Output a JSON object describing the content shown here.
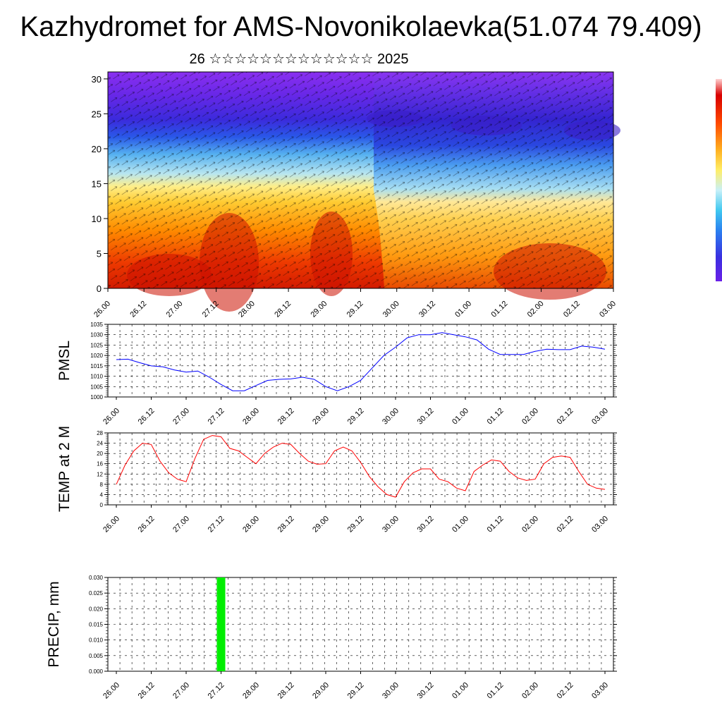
{
  "title": "Kazhydromet for AMS-Novonikolaevka(51.074 79.409)",
  "subtitle": "26 ☆☆☆☆☆☆☆☆☆☆☆☆☆ 2025",
  "colors": {
    "pmsl_line": "#0000ff",
    "temp_line": "#ff0000",
    "precip_bar": "#00ee00",
    "grid": "#000000"
  },
  "chart_data": [
    {
      "id": "cross-section",
      "type": "heatmap",
      "title": "",
      "xlabel": "",
      "ylabel": "",
      "x_ticks": [
        "26.00",
        "26.12",
        "27.00",
        "27.12",
        "28.00",
        "28.12",
        "29.00",
        "29.12",
        "30.00",
        "30.12",
        "01.00",
        "01.12",
        "02.00",
        "02.12",
        "03.00"
      ],
      "y_ticks": [
        0,
        5,
        10,
        15,
        20,
        25,
        30
      ],
      "ylim": [
        0,
        31
      ],
      "colorbar": "violet-blue-cyan-yellow-orange-red",
      "overlay": "wind vectors"
    },
    {
      "id": "pmsl",
      "type": "line",
      "ylabel": "PMSL",
      "x_ticks": [
        "26.00",
        "26.12",
        "27.00",
        "27.12",
        "28.00",
        "28.12",
        "29.00",
        "29.12",
        "30.00",
        "30.12",
        "01.00",
        "01.12",
        "02.00",
        "02.12",
        "03.00"
      ],
      "ylim": [
        1000,
        1035
      ],
      "y_ticks": [
        1000,
        1005,
        1010,
        1015,
        1020,
        1025,
        1030,
        1035
      ],
      "series": [
        {
          "values": [
            1018,
            1018.2,
            1016.5,
            1015,
            1014.5,
            1013,
            1012,
            1012.5,
            1009.5,
            1006,
            1003,
            1003,
            1005.5,
            1008,
            1008.5,
            1008.7,
            1009.5,
            1008.5,
            1005,
            1003,
            1005,
            1008,
            1014,
            1020,
            1024,
            1028.5,
            1030,
            1030,
            1031,
            1030,
            1029,
            1027.5,
            1023,
            1020.5,
            1020.5,
            1020.5,
            1022,
            1023,
            1022.8,
            1022.8,
            1024.5,
            1024,
            1023
          ]
        }
      ]
    },
    {
      "id": "temp",
      "type": "line",
      "ylabel": "TEMP at 2 M",
      "x_ticks": [
        "26.00",
        "26.12",
        "27.00",
        "27.12",
        "28.00",
        "28.12",
        "29.00",
        "29.12",
        "30.00",
        "30.12",
        "01.00",
        "01.12",
        "02.00",
        "02.12",
        "03.00"
      ],
      "ylim": [
        0,
        28
      ],
      "y_ticks": [
        0,
        4,
        8,
        12,
        16,
        20,
        24,
        28
      ],
      "series": [
        {
          "values": [
            8,
            15.5,
            21,
            24,
            23.5,
            17,
            12.5,
            10,
            9,
            18,
            25.5,
            27,
            26.5,
            22,
            21,
            18.5,
            16,
            20,
            22.5,
            24,
            23.5,
            20,
            17,
            15.8,
            16,
            21,
            22.5,
            21,
            16.5,
            11,
            7,
            4,
            3,
            9,
            12.5,
            14,
            14,
            10,
            9,
            6.5,
            5.5,
            13,
            15.5,
            17.5,
            17,
            13,
            10.5,
            9.5,
            10,
            16,
            18.5,
            19,
            18.5,
            13,
            8,
            6.5,
            6
          ]
        }
      ]
    },
    {
      "id": "precip",
      "type": "bar",
      "ylabel": "PRECIP, mm",
      "x_ticks": [
        "26.00",
        "26.12",
        "27.00",
        "27.12",
        "28.00",
        "28.12",
        "29.00",
        "29.12",
        "30.00",
        "30.12",
        "01.00",
        "01.12",
        "02.00",
        "02.12",
        "03.00"
      ],
      "ylim": [
        0,
        0.03
      ],
      "y_ticks": [
        "0.000",
        "0.005",
        "0.010",
        "0.015",
        "0.020",
        "0.025",
        "0.030"
      ],
      "bars": [
        {
          "x": "27.12",
          "value": 0.03
        }
      ]
    }
  ]
}
